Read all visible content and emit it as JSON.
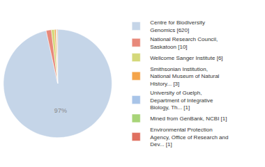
{
  "chart_data": {
    "type": "pie",
    "categories": [
      "Centre for Biodiversity\nGenomics [620]",
      "National Research Council,\nSaskatoon [10]",
      "Wellcome Sanger Institute [6]",
      "Smithsonian Institution,\nNational Museum of Natural\nHistory... [3]",
      "University of Guelph,\nDepartment of Integrative\nBiology, Th... [1]",
      "Mined from GenBank, NCBI [1]",
      "Environmental Protection\nAgency, Office of Research and\nDev... [1]"
    ],
    "values": [
      620,
      10,
      6,
      3,
      1,
      1,
      1
    ],
    "value_labels": [
      "97%",
      null,
      null,
      null,
      null,
      null,
      null
    ],
    "data_labels": true,
    "colors": [
      "#c5d5e8",
      "#e8897a",
      "#d4d87a",
      "#f4a44a",
      "#a8c4e8",
      "#a8d478",
      "#e07060"
    ],
    "legend": "right"
  }
}
